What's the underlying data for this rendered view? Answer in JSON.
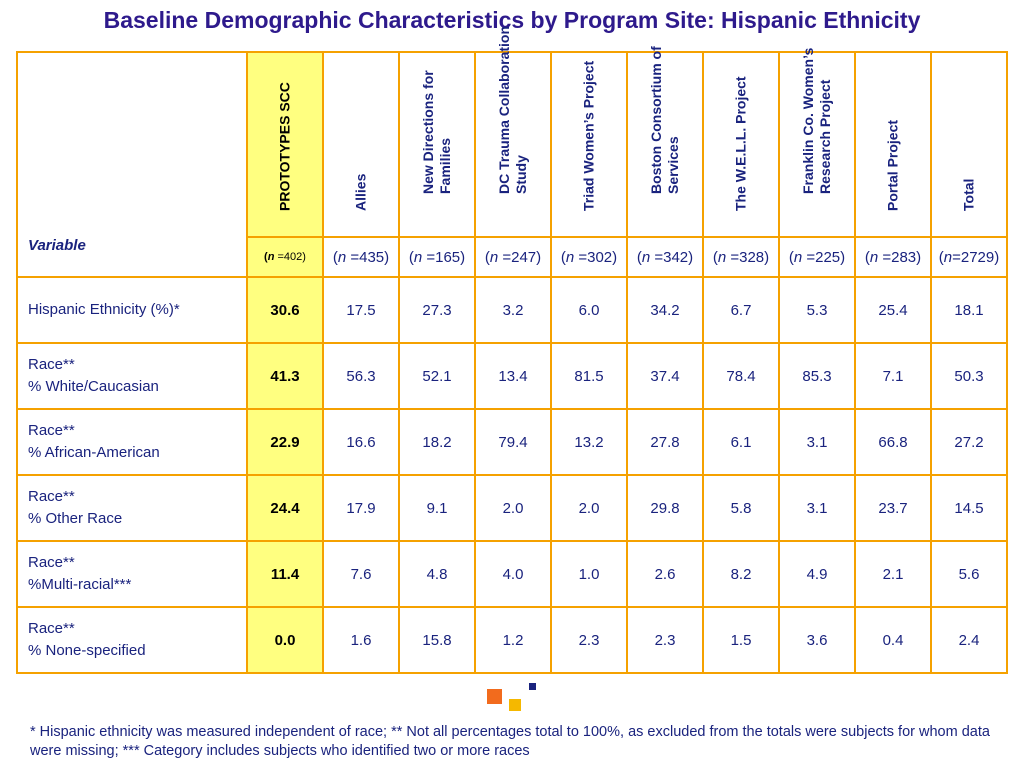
{
  "title": "Baseline Demographic Characteristics by Program Site: Hispanic Ethnicity",
  "table": {
    "variable_label": "Variable",
    "columns": [
      {
        "label": "PROTOTYPES SCC",
        "n": "402"
      },
      {
        "label": "Allies",
        "n": "435"
      },
      {
        "label": "New Directions for Families",
        "n": "165"
      },
      {
        "label": "DC Trauma Collaboration Study",
        "n": "247"
      },
      {
        "label": "Triad Women’s Project",
        "n": "302"
      },
      {
        "label": "Boston Consortium of Services",
        "n": "342"
      },
      {
        "label": "The W.E.L.L. Project",
        "n": "328"
      },
      {
        "label": "Franklin Co. Women’s Research Project",
        "n": "225"
      },
      {
        "label": "Portal Project",
        "n": "283"
      },
      {
        "label": "Total",
        "n": "2729"
      }
    ],
    "rows": [
      {
        "label1": "Hispanic Ethnicity (%)*",
        "label2": "",
        "values": [
          "30.6",
          "17.5",
          "27.3",
          "3.2",
          "6.0",
          "34.2",
          "6.7",
          "5.3",
          "25.4",
          "18.1"
        ]
      },
      {
        "label1": "Race**",
        "label2": "% White/Caucasian",
        "values": [
          "41.3",
          "56.3",
          "52.1",
          "13.4",
          "81.5",
          "37.4",
          "78.4",
          "85.3",
          "7.1",
          "50.3"
        ]
      },
      {
        "label1": "Race**",
        "label2": "% African-American",
        "values": [
          "22.9",
          "16.6",
          "18.2",
          "79.4",
          "13.2",
          "27.8",
          "6.1",
          "3.1",
          "66.8",
          "27.2"
        ]
      },
      {
        "label1": "Race**",
        "label2": "% Other Race",
        "values": [
          "24.4",
          "17.9",
          "9.1",
          "2.0",
          "2.0",
          "29.8",
          "5.8",
          "3.1",
          "23.7",
          "14.5"
        ]
      },
      {
        "label1": "Race**",
        "label2": "%Multi-racial***",
        "values": [
          "11.4",
          "7.6",
          "4.8",
          "4.0",
          "1.0",
          "2.6",
          "8.2",
          "4.9",
          "2.1",
          "5.6"
        ]
      },
      {
        "label1": "Race**",
        "label2": "% None-specified",
        "values": [
          "0.0",
          "1.6",
          "15.8",
          "1.2",
          "2.3",
          "2.3",
          "1.5",
          "3.6",
          "0.4",
          "2.4"
        ]
      }
    ]
  },
  "colors": {
    "border": "#f5a100",
    "highlight": "#ffff80",
    "text": "#1a237e",
    "title": "#2e1a8c",
    "square_orange": "#f26b1d",
    "square_yellow": "#f5b800",
    "square_navy": "#1a237e"
  },
  "footnote": "* Hispanic ethnicity was measured independent of race; ** Not all percentages total to 100%, as excluded from the totals were subjects for whom data were missing; *** Category includes subjects who identified two or more races"
}
